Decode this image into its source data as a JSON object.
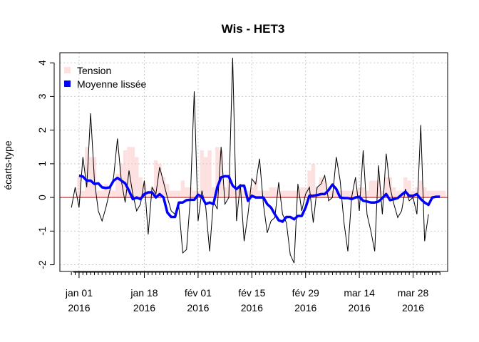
{
  "chart_data": {
    "type": "line",
    "title": "Wis - HET3",
    "xlabel": "",
    "ylabel": "écarts-type",
    "ylim": [
      -2.2,
      4.3
    ],
    "yticks": [
      -2,
      -1,
      0,
      1,
      2,
      3,
      4
    ],
    "xlim": [
      "2015-12-27",
      "2016-04-06"
    ],
    "xticks": [
      {
        "date": "2016-01-01",
        "line1": "jan 01",
        "line2": "2016"
      },
      {
        "date": "2016-01-18",
        "line1": "jan 18",
        "line2": "2016"
      },
      {
        "date": "2016-02-01",
        "line1": "fév 01",
        "line2": "2016"
      },
      {
        "date": "2016-02-15",
        "line1": "fév 15",
        "line2": "2016"
      },
      {
        "date": "2016-02-29",
        "line1": "fév 29",
        "line2": "2016"
      },
      {
        "date": "2016-03-14",
        "line1": "mar 14",
        "line2": "2016"
      },
      {
        "date": "2016-03-28",
        "line1": "mar 28",
        "line2": "2016"
      }
    ],
    "grid": true,
    "reference_line": {
      "y": 0,
      "color": "#ee0000"
    },
    "legend_position": "top-left",
    "colors": {
      "tension": "#fde0e0",
      "raw": "#000000",
      "smooth": "#0000ff"
    },
    "series": [
      {
        "name": "Tension",
        "kind": "bars",
        "start_date": "2016-01-01",
        "values": [
          0.6,
          0.2,
          1.5,
          1.2,
          1.2,
          0.2,
          0.2,
          0.4,
          0.3,
          0.2,
          0.7,
          1.0,
          1.4,
          1.5,
          1.5,
          1.2,
          0.6,
          0.4,
          0.2,
          0.3,
          1.1,
          1.0,
          0.6,
          0.4,
          0.2,
          0.2,
          0.2,
          0.5,
          0.3,
          0.3,
          0.2,
          0.2,
          1.4,
          1.2,
          1.4,
          0.3,
          1.5,
          1.4,
          0.3,
          0.7,
          0.3,
          0.3,
          0.3,
          0.2,
          0.2,
          0.3,
          0.5,
          0.2,
          0.2,
          0.2,
          0.3,
          0.3,
          0.2,
          0.2,
          0.2,
          0.2,
          0.2,
          0.2,
          0.3,
          0.3,
          0.8,
          1.0,
          0.3,
          0.6,
          0.5,
          0.3,
          0.2,
          0.2,
          0.2,
          0.2,
          0.2,
          0.2,
          0.2,
          0.3,
          0.3,
          0.2,
          0.5,
          0.5,
          0.5,
          0.2,
          0.6,
          0.6,
          0.3,
          0.2,
          0.2,
          0.6,
          0.5,
          0.2,
          0.3,
          0.5,
          0.3,
          0.2,
          0.2,
          0.2,
          0.2,
          0.2
        ]
      },
      {
        "name": "",
        "kind": "line",
        "start_date": "2015-12-30",
        "values": [
          -0.3,
          0.3,
          -0.3,
          1.2,
          0.3,
          2.5,
          0.5,
          -0.4,
          -0.7,
          -0.3,
          0.2,
          0.6,
          1.75,
          0.5,
          -0.15,
          0.8,
          0.1,
          -0.4,
          -0.2,
          0.5,
          -1.1,
          0.3,
          0.1,
          0.9,
          0.45,
          0.0,
          -0.4,
          -0.5,
          -0.3,
          -1.65,
          -1.55,
          0.0,
          3.15,
          -0.7,
          0.2,
          -0.3,
          -1.6,
          -0.1,
          -0.35,
          1.5,
          -0.2,
          0.0,
          4.15,
          -0.7,
          0.4,
          -1.3,
          -0.5,
          0.55,
          0.4,
          1.15,
          -0.2,
          -1.05,
          -0.7,
          -0.6,
          0.45,
          -0.5,
          -0.75,
          -1.7,
          -1.95,
          0.4,
          -0.4,
          0.1,
          0.3,
          -0.75,
          0.3,
          0.4,
          0.65,
          -0.1,
          0.0,
          1.2,
          0.5,
          -0.75,
          -1.6,
          0.0,
          0.6,
          -0.4,
          1.4,
          -0.5,
          -1.0,
          -1.6,
          0.95,
          -0.5,
          1.3,
          0.3,
          -0.2,
          -0.6,
          -0.4,
          0.25,
          -0.1,
          0.0,
          -0.5,
          2.15,
          -1.3,
          -0.5
        ]
      },
      {
        "name": "Moyenne lissée",
        "kind": "line",
        "start_date": "2016-01-01",
        "values": [
          0.65,
          0.62,
          0.5,
          0.5,
          0.4,
          0.42,
          0.3,
          0.28,
          0.3,
          0.5,
          0.58,
          0.5,
          0.42,
          0.2,
          -0.05,
          0.0,
          -0.05,
          0.1,
          0.15,
          0.15,
          0.0,
          0.1,
          0.0,
          -0.45,
          -0.58,
          -0.58,
          -0.15,
          -0.15,
          -0.08,
          -0.07,
          -0.07,
          0.08,
          0.02,
          -0.2,
          -0.15,
          -0.2,
          0.3,
          0.6,
          0.63,
          0.62,
          0.35,
          0.25,
          0.35,
          0.35,
          -0.1,
          0.05,
          0.0,
          0.0,
          0.0,
          -0.2,
          -0.3,
          -0.5,
          -0.68,
          -0.72,
          -0.58,
          -0.58,
          -0.65,
          -0.55,
          -0.55,
          -0.3,
          0.05,
          0.05,
          0.07,
          0.1,
          0.1,
          0.22,
          0.38,
          0.25,
          0.0,
          -0.02,
          -0.02,
          -0.05,
          0.0,
          0.02,
          -0.1,
          -0.12,
          -0.15,
          -0.15,
          -0.12,
          -0.02,
          0.1,
          -0.08,
          -0.05,
          -0.02,
          0.08,
          0.17,
          0.05,
          0.05,
          0.1,
          -0.05,
          -0.15,
          -0.22,
          0.0,
          0.02,
          0.02
        ]
      }
    ]
  }
}
